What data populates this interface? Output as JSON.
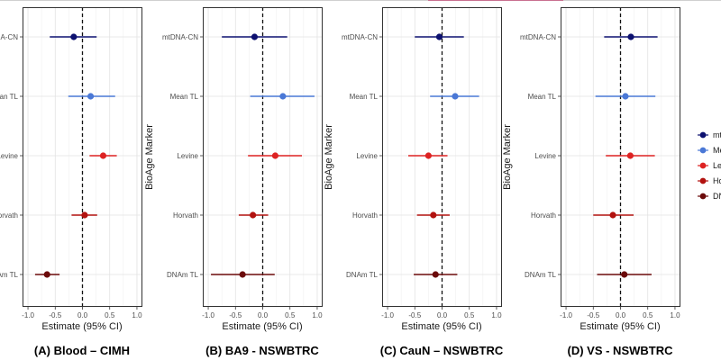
{
  "chart_data": [
    {
      "type": "forest",
      "caption": "(A) Blood – CIMH",
      "xlabel": "Estimate (95% CI)",
      "ylabel": "",
      "xlim": [
        -1.1,
        1.1
      ],
      "xticks": [
        "-1.0",
        "-0.5",
        "0.0",
        "0.5",
        "1.0"
      ],
      "categories": [
        "mtDNA-CN",
        "Mean TL",
        "Levine",
        "Horvath",
        "DNAm TL"
      ],
      "category_labels": [
        "A-CN",
        "Mean TL",
        "Levine",
        "Horvath",
        "DNAm TL"
      ],
      "estimates": [
        -0.16,
        0.15,
        0.38,
        0.04,
        -0.65
      ],
      "ci_low": [
        -0.6,
        -0.26,
        0.13,
        -0.2,
        -0.87
      ],
      "ci_high": [
        0.26,
        0.6,
        0.63,
        0.27,
        -0.42
      ]
    },
    {
      "type": "forest",
      "caption": "(B) BA9 - NSWBTRC",
      "xlabel": "Estimate (95% CI)",
      "ylabel": "BioAge Marker",
      "xlim": [
        -1.1,
        1.1
      ],
      "xticks": [
        "-1.0",
        "-0.5",
        "0.0",
        "0.5",
        "1.0"
      ],
      "categories": [
        "mtDNA-CN",
        "Mean TL",
        "Levine",
        "Horvath",
        "DNAm TL"
      ],
      "category_labels": [
        "mtDNA-CN",
        "Mean TL",
        "Levine",
        "Horvath",
        "DNAm TL"
      ],
      "estimates": [
        -0.15,
        0.37,
        0.23,
        -0.18,
        -0.37
      ],
      "ci_low": [
        -0.75,
        -0.23,
        -0.27,
        -0.44,
        -0.95
      ],
      "ci_high": [
        0.45,
        0.95,
        0.72,
        0.1,
        0.22
      ]
    },
    {
      "type": "forest",
      "caption": "(C) CauN – NSWBTRC",
      "xlabel": "Estimate (95% CI)",
      "ylabel": "BioAge Marker",
      "xlim": [
        -1.1,
        1.1
      ],
      "xticks": [
        "-1.0",
        "-0.5",
        "0.0",
        "0.5",
        "1.0"
      ],
      "categories": [
        "mtDNA-CN",
        "Mean TL",
        "Levine",
        "Horvath",
        "DNAm TL"
      ],
      "category_labels": [
        "mtDNA-CN",
        "Mean TL",
        "Levine",
        "Horvath",
        "DNAm TL"
      ],
      "estimates": [
        -0.05,
        0.24,
        -0.25,
        -0.16,
        -0.12
      ],
      "ci_low": [
        -0.5,
        -0.22,
        -0.62,
        -0.46,
        -0.52
      ],
      "ci_high": [
        0.4,
        0.68,
        0.1,
        0.14,
        0.28
      ]
    },
    {
      "type": "forest",
      "caption": "(D) VS - NSWBTRC",
      "xlabel": "Estimate (95% CI)",
      "ylabel": "BioAge Marker",
      "xlim": [
        -1.1,
        1.1
      ],
      "xticks": [
        "-1.0",
        "-0.5",
        "0.0",
        "0.5",
        "1.0"
      ],
      "categories": [
        "mtDNA-CN",
        "Mean TL",
        "Levine",
        "Horvath",
        "DNAm TL"
      ],
      "category_labels": [
        "mtDNA-CN",
        "Mean TL",
        "Levine",
        "Horvath",
        "DNAm TL"
      ],
      "estimates": [
        0.19,
        0.09,
        0.18,
        -0.14,
        0.07
      ],
      "ci_low": [
        -0.3,
        -0.46,
        -0.27,
        -0.5,
        -0.43
      ],
      "ci_high": [
        0.68,
        0.64,
        0.63,
        0.24,
        0.57
      ]
    }
  ],
  "legend": {
    "position": "right",
    "items": [
      "mt",
      "Me",
      "Le",
      "Ho",
      "DN"
    ]
  },
  "colors": {
    "mtDNA-CN": "#0d1170",
    "Mean TL": "#4a78d6",
    "Levine": "#dd2222",
    "Horvath": "#b2120f",
    "DNAm TL": "#6b0a0a"
  }
}
